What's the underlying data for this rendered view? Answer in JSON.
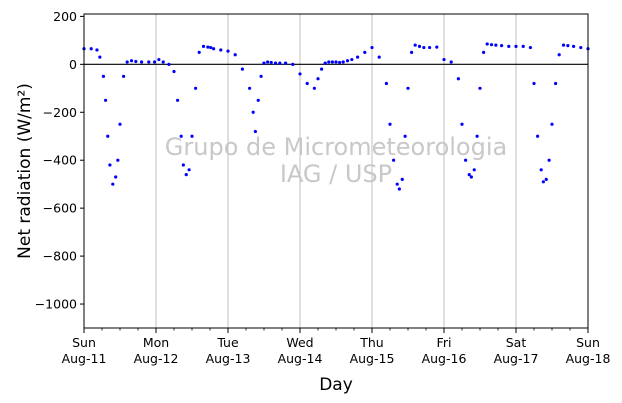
{
  "chart_data": {
    "type": "scatter",
    "xlabel": "Day",
    "ylabel": "Net radiation (W/m²)",
    "watermark": [
      "Grupo de Micrometeorologia",
      "IAG / USP"
    ],
    "ylim": [
      -1100,
      210
    ],
    "yticks": [
      200,
      0,
      -200,
      -400,
      -600,
      -800,
      -1000
    ],
    "ytick_labels": [
      "200",
      "0",
      "−200",
      "−400",
      "−600",
      "−800",
      "−1000"
    ],
    "xlim": [
      0,
      7
    ],
    "xticks": [
      0,
      1,
      2,
      3,
      4,
      5,
      6,
      7
    ],
    "xtick_labels": [
      [
        "Sun",
        "Aug-11"
      ],
      [
        "Mon",
        "Aug-12"
      ],
      [
        "Tue",
        "Aug-13"
      ],
      [
        "Wed",
        "Aug-14"
      ],
      [
        "Thu",
        "Aug-15"
      ],
      [
        "Fri",
        "Aug-16"
      ],
      [
        "Sat",
        "Aug-17"
      ],
      [
        "Sun",
        "Aug-18"
      ]
    ],
    "grid": "vertical",
    "zero_line": true,
    "marker_color": "#0000ff",
    "series": [
      {
        "x": [
          0.0,
          0.1,
          0.18,
          0.22,
          0.27,
          0.3,
          0.33,
          0.36,
          0.4,
          0.44,
          0.47,
          0.5,
          0.55,
          0.6,
          0.66,
          0.72,
          0.8,
          0.9,
          0.98,
          1.04,
          1.1,
          1.18,
          1.25,
          1.3,
          1.35,
          1.38,
          1.42,
          1.46,
          1.5,
          1.55,
          1.6,
          1.66,
          1.72,
          1.76,
          1.8,
          1.9,
          2.0,
          2.1,
          2.2,
          2.3,
          2.35,
          2.38,
          2.42,
          2.46,
          2.5,
          2.55,
          2.6,
          2.66,
          2.72,
          2.8,
          2.9,
          3.0,
          3.1,
          3.2,
          3.25,
          3.3,
          3.35,
          3.4,
          3.45,
          3.5,
          3.55,
          3.6,
          3.66,
          3.72,
          3.8,
          3.9,
          4.0,
          4.1,
          4.2,
          4.25,
          4.3,
          4.35,
          4.38,
          4.42,
          4.46,
          4.5,
          4.55,
          4.6,
          4.66,
          4.72,
          4.8,
          4.9,
          5.0,
          5.1,
          5.2,
          5.25,
          5.3,
          5.35,
          5.38,
          5.42,
          5.46,
          5.5,
          5.55,
          5.6,
          5.66,
          5.72,
          5.8,
          5.9,
          6.0,
          6.1,
          6.2,
          6.25,
          6.3,
          6.35,
          6.38,
          6.42,
          6.46,
          6.5,
          6.55,
          6.6,
          6.66,
          6.72,
          6.8,
          6.9,
          7.0
        ],
        "y": [
          65,
          65,
          60,
          30,
          -50,
          -150,
          -300,
          -420,
          -500,
          -470,
          -400,
          -250,
          -50,
          10,
          15,
          12,
          10,
          10,
          10,
          20,
          10,
          0,
          -30,
          -150,
          -300,
          -420,
          -460,
          -440,
          -300,
          -100,
          50,
          75,
          72,
          70,
          65,
          60,
          55,
          40,
          -20,
          -100,
          -200,
          -280,
          -150,
          -50,
          5,
          10,
          8,
          5,
          5,
          5,
          0,
          -40,
          -80,
          -100,
          -60,
          -20,
          5,
          10,
          10,
          10,
          8,
          10,
          15,
          20,
          30,
          50,
          70,
          30,
          -80,
          -250,
          -400,
          -500,
          -520,
          -480,
          -300,
          -100,
          50,
          80,
          75,
          70,
          70,
          72,
          20,
          10,
          -60,
          -250,
          -400,
          -460,
          -470,
          -440,
          -300,
          -100,
          50,
          85,
          82,
          80,
          78,
          75,
          75,
          75,
          70,
          -80,
          -300,
          -440,
          -490,
          -480,
          -400,
          -250,
          -80,
          40,
          80,
          78,
          75,
          70,
          65
        ]
      }
    ]
  }
}
